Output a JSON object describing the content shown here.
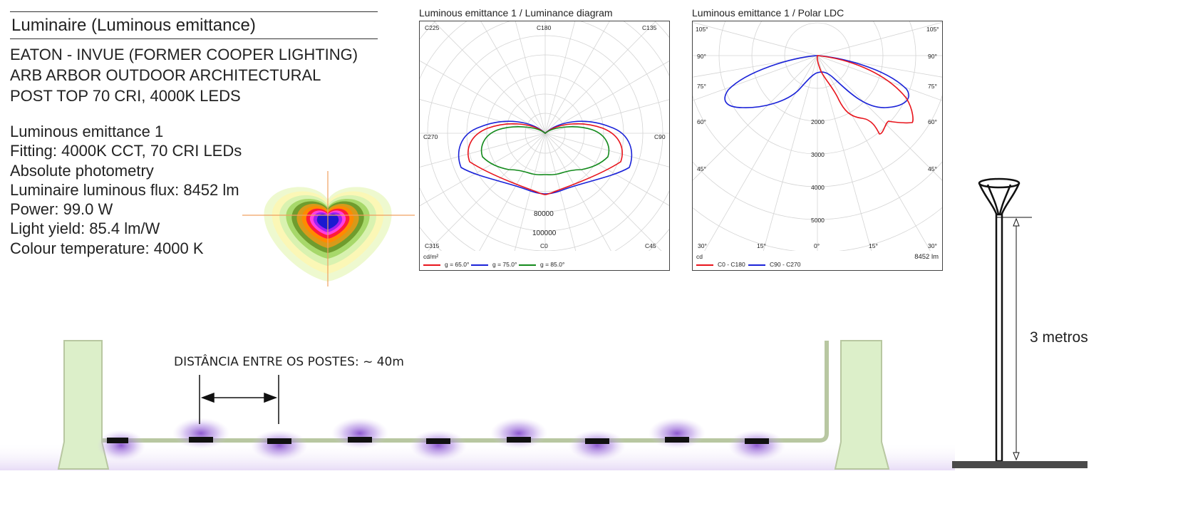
{
  "header": {
    "title": "Luminaire (Luminous emittance)"
  },
  "description": {
    "lines": [
      "EATON - INVUE (FORMER COOPER LIGHTING)",
      "ARB ARBOR OUTDOOR ARCHITECTURAL",
      "POST TOP 70 CRI, 4000K LEDS"
    ],
    "specs": [
      "Luminous emittance 1",
      "Fitting: 4000K CCT, 70 CRI LEDs",
      "Absolute photometry",
      "Luminaire luminous flux: 8452 lm",
      "Power: 99.0 W",
      "Light yield: 85.4 lm/W",
      "Colour temperature: 4000 K"
    ]
  },
  "luminance_diagram": {
    "caption": "Luminous emittance 1 / Luminance diagram",
    "corner_labels": {
      "top_left": "C225",
      "top": "C180",
      "top_right": "C135",
      "left": "C270",
      "right": "C90",
      "bottom_left": "C315",
      "bottom": "C0",
      "bottom_right": "C45"
    },
    "scale_labels": [
      "80000",
      "100000"
    ],
    "unit": "cd/m²",
    "legend": [
      {
        "label": "g = 65.0°",
        "color": "#e8141c"
      },
      {
        "label": "g = 75.0°",
        "color": "#1a22d8"
      },
      {
        "label": "g = 85.0°",
        "color": "#138a1c"
      }
    ]
  },
  "polar_ldc": {
    "caption": "Luminous emittance 1 / Polar LDC",
    "angle_labels_left": [
      "105°",
      "90°",
      "75°",
      "60°",
      "45°"
    ],
    "angle_labels_right": [
      "105°",
      "90°",
      "75°",
      "60°",
      "45°"
    ],
    "bottom_labels": [
      "30°",
      "15°",
      "0°",
      "15°",
      "30°"
    ],
    "radial_labels": [
      "2000",
      "3000",
      "4000",
      "5000"
    ],
    "unit": "cd",
    "flux": "8452 lm",
    "legend": [
      {
        "label": "C0 - C180",
        "color": "#e8141c"
      },
      {
        "label": "C90 - C270",
        "color": "#1a22d8"
      }
    ]
  },
  "street_scene": {
    "distance_label": "DISTÂNCIA ENTRE OS POSTES: ~ 40m"
  },
  "pole": {
    "height_label": "3 metros"
  },
  "colors": {
    "pillar": "#dcefc9",
    "pipe": "#b8c7a1",
    "light_glow": "#8a4fd0"
  }
}
